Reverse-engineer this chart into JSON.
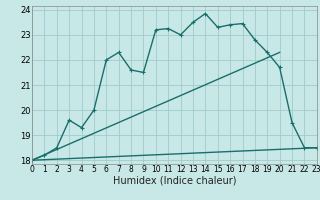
{
  "xlabel": "Humidex (Indice chaleur)",
  "bg_color": "#c8e8e8",
  "grid_color": "#a0cccc",
  "line_color": "#1a6e6a",
  "xlim": [
    0,
    23
  ],
  "ylim": [
    17.85,
    24.15
  ],
  "yticks": [
    18,
    19,
    20,
    21,
    22,
    23,
    24
  ],
  "xticks": [
    0,
    1,
    2,
    3,
    4,
    5,
    6,
    7,
    8,
    9,
    10,
    11,
    12,
    13,
    14,
    15,
    16,
    17,
    18,
    19,
    20,
    21,
    22,
    23
  ],
  "line1_x": [
    0,
    1,
    2,
    3,
    4,
    5,
    6,
    7,
    8,
    9,
    10,
    11,
    12,
    13,
    14,
    15,
    16,
    17,
    18,
    19,
    20,
    21,
    22,
    23
  ],
  "line1_y": [
    18.0,
    18.2,
    18.5,
    19.6,
    19.3,
    20.0,
    22.0,
    22.3,
    21.6,
    21.5,
    23.2,
    23.25,
    23.0,
    23.5,
    23.85,
    23.3,
    23.4,
    23.45,
    22.8,
    22.3,
    21.7,
    19.5,
    18.5,
    18.5
  ],
  "line2_x": [
    0,
    20
  ],
  "line2_y": [
    18.0,
    22.3
  ],
  "line3_x": [
    0,
    23
  ],
  "line3_y": [
    18.0,
    18.5
  ],
  "marker_size": 3.0,
  "linewidth": 1.0,
  "label_fontsize": 7,
  "tick_fontsize": 6
}
